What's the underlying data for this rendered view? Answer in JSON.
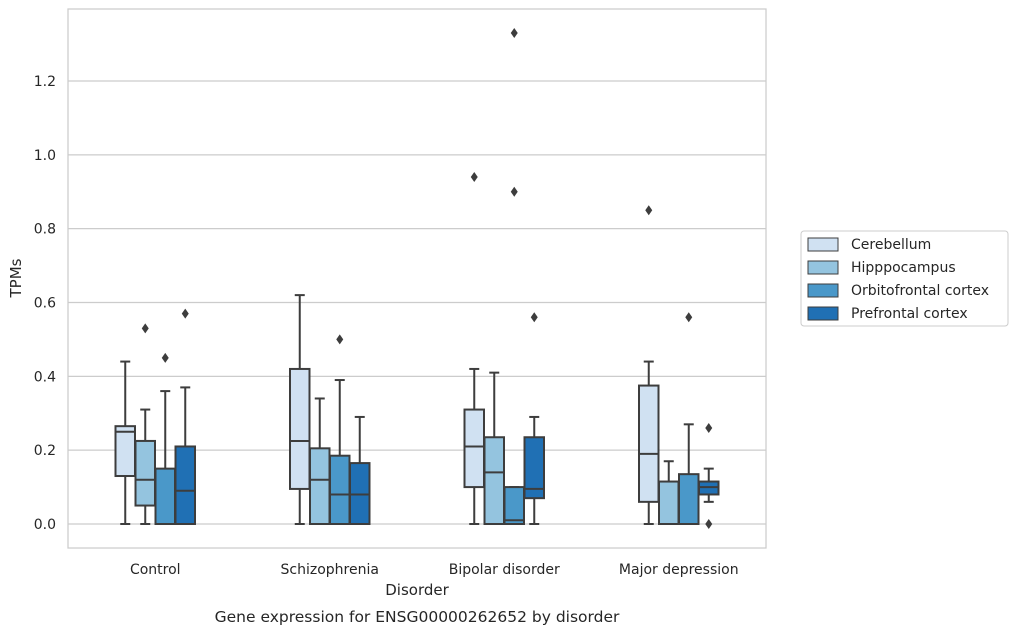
{
  "chart_data": {
    "type": "box",
    "title": "",
    "caption": "Gene expression for ENSG00000262652 by disorder",
    "xlabel": "Disorder",
    "ylabel": "TPMs",
    "ylim": [
      -0.065,
      1.395
    ],
    "yticks": [
      "0.0",
      "0.2",
      "0.4",
      "0.6",
      "0.8",
      "1.0",
      "1.2"
    ],
    "grid": "horizontal",
    "legend_position": "right",
    "categories": [
      "Control",
      "Schizophrenia",
      "Bipolar disorder",
      "Major depression"
    ],
    "series": [
      {
        "name": "Cerebellum",
        "color": "#d0e1f2",
        "boxes": [
          {
            "whisker_low": 0.0,
            "q1": 0.13,
            "median": 0.25,
            "q3": 0.265,
            "whisker_high": 0.44,
            "outliers": []
          },
          {
            "whisker_low": 0.0,
            "q1": 0.095,
            "median": 0.225,
            "q3": 0.42,
            "whisker_high": 0.62,
            "outliers": []
          },
          {
            "whisker_low": 0.0,
            "q1": 0.1,
            "median": 0.21,
            "q3": 0.31,
            "whisker_high": 0.42,
            "outliers": [
              0.94
            ]
          },
          {
            "whisker_low": 0.0,
            "q1": 0.06,
            "median": 0.19,
            "q3": 0.375,
            "whisker_high": 0.44,
            "outliers": [
              0.85
            ]
          }
        ]
      },
      {
        "name": "Hipppocampus",
        "color": "#94c4df",
        "boxes": [
          {
            "whisker_low": 0.0,
            "q1": 0.05,
            "median": 0.12,
            "q3": 0.225,
            "whisker_high": 0.31,
            "outliers": [
              0.53
            ]
          },
          {
            "whisker_low": 0.0,
            "q1": 0.0,
            "median": 0.12,
            "q3": 0.205,
            "whisker_high": 0.34,
            "outliers": []
          },
          {
            "whisker_low": 0.0,
            "q1": 0.0,
            "median": 0.14,
            "q3": 0.235,
            "whisker_high": 0.41,
            "outliers": []
          },
          {
            "whisker_low": 0.0,
            "q1": 0.0,
            "median": 0.0,
            "q3": 0.115,
            "whisker_high": 0.17,
            "outliers": []
          }
        ]
      },
      {
        "name": "Orbitofrontal cortex",
        "color": "#4a98c9",
        "boxes": [
          {
            "whisker_low": 0.0,
            "q1": 0.0,
            "median": 0.0,
            "q3": 0.15,
            "whisker_high": 0.36,
            "outliers": [
              0.45
            ]
          },
          {
            "whisker_low": 0.0,
            "q1": 0.0,
            "median": 0.08,
            "q3": 0.185,
            "whisker_high": 0.39,
            "outliers": [
              0.5
            ]
          },
          {
            "whisker_low": 0.0,
            "q1": 0.0,
            "median": 0.01,
            "q3": 0.1,
            "whisker_high": 0.1,
            "outliers": [
              0.9,
              1.33
            ]
          },
          {
            "whisker_low": 0.0,
            "q1": 0.0,
            "median": 0.0,
            "q3": 0.135,
            "whisker_high": 0.27,
            "outliers": [
              0.56
            ]
          }
        ]
      },
      {
        "name": "Prefrontal cortex",
        "color": "#2070b4",
        "boxes": [
          {
            "whisker_low": 0.0,
            "q1": 0.0,
            "median": 0.09,
            "q3": 0.21,
            "whisker_high": 0.37,
            "outliers": [
              0.57
            ]
          },
          {
            "whisker_low": 0.0,
            "q1": 0.0,
            "median": 0.08,
            "q3": 0.165,
            "whisker_high": 0.29,
            "outliers": []
          },
          {
            "whisker_low": 0.0,
            "q1": 0.07,
            "median": 0.095,
            "q3": 0.235,
            "whisker_high": 0.29,
            "outliers": [
              0.56
            ]
          },
          {
            "whisker_low": 0.06,
            "q1": 0.08,
            "median": 0.1,
            "q3": 0.115,
            "whisker_high": 0.15,
            "outliers": [
              0.0,
              0.26
            ]
          }
        ]
      }
    ]
  }
}
